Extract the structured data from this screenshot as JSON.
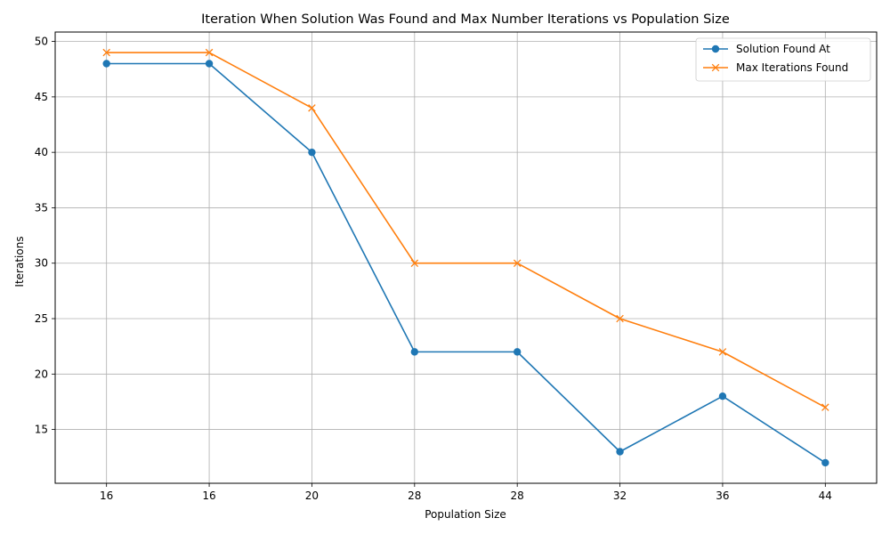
{
  "chart_data": {
    "type": "line",
    "title": "Iteration When Solution Was Found and Max Number Iterations vs Population Size",
    "xlabel": "Population Size",
    "ylabel": "Iterations",
    "categories": [
      "16",
      "16",
      "20",
      "28",
      "28",
      "32",
      "36",
      "44"
    ],
    "series": [
      {
        "name": "Solution Found At",
        "values": [
          48,
          48,
          40,
          22,
          22,
          13,
          18,
          12
        ],
        "color": "#1f77b4",
        "marker": "circle"
      },
      {
        "name": "Max Iterations Found",
        "values": [
          49,
          49,
          44,
          30,
          30,
          25,
          22,
          17
        ],
        "color": "#ff7f0e",
        "marker": "x"
      }
    ],
    "yticks": [
      15,
      20,
      25,
      30,
      35,
      40,
      45,
      50
    ],
    "ylim": [
      10.15,
      50.85
    ],
    "grid": true,
    "legend_position": "top-right"
  }
}
